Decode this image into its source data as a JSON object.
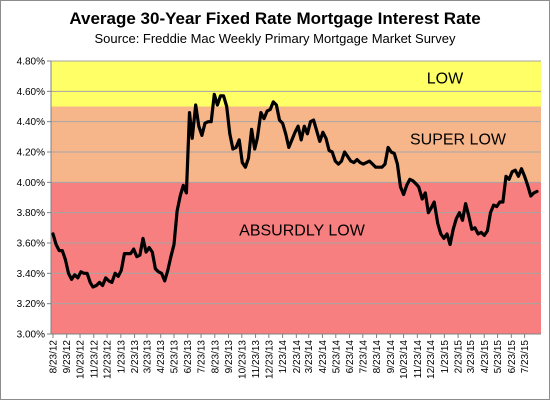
{
  "chart_data": {
    "type": "line",
    "title": "Average 30-Year Fixed Rate Mortgage Interest Rate",
    "subtitle": "Source: Freddie Mac Weekly Primary Mortgage Market Survey",
    "y_unit": "%",
    "ylim": [
      3.0,
      4.8
    ],
    "y_ticks": [
      "3.00%",
      "3.20%",
      "3.40%",
      "3.60%",
      "3.80%",
      "4.00%",
      "4.20%",
      "4.40%",
      "4.60%",
      "4.80%"
    ],
    "x_ticks": [
      "8/23/12",
      "9/23/12",
      "10/23/12",
      "11/23/12",
      "12/23/12",
      "1/23/13",
      "2/23/13",
      "3/23/13",
      "4/23/13",
      "5/23/13",
      "6/23/13",
      "7/23/13",
      "8/23/13",
      "9/23/13",
      "10/23/13",
      "11/23/13",
      "12/23/13",
      "1/23/14",
      "2/23/14",
      "3/23/14",
      "4/23/14",
      "5/23/14",
      "6/23/14",
      "7/23/14",
      "8/23/14",
      "9/23/14",
      "10/23/14",
      "11/23/14",
      "12/23/14",
      "1/23/15",
      "2/23/15",
      "3/23/15",
      "4/23/15",
      "5/23/15",
      "6/23/15",
      "7/23/15"
    ],
    "grid": true,
    "bands": [
      {
        "label": "LOW",
        "from": 4.5,
        "to": 4.8,
        "color": "#ffff66"
      },
      {
        "label": "SUPER LOW",
        "from": 4.0,
        "to": 4.5,
        "color": "#f7b58a"
      },
      {
        "label": "ABSURDLY LOW",
        "from": 3.0,
        "to": 4.0,
        "color": "#f77f7f"
      }
    ],
    "line_color": "#000000",
    "series": [
      {
        "x": [
          "2012-08-23",
          "2012-08-30",
          "2012-09-06",
          "2012-09-13",
          "2012-09-20",
          "2012-09-27",
          "2012-10-04",
          "2012-10-11",
          "2012-10-18",
          "2012-10-25",
          "2012-11-01",
          "2012-11-08",
          "2012-11-15",
          "2012-11-21",
          "2012-11-29",
          "2012-12-06",
          "2012-12-13",
          "2012-12-20",
          "2012-12-27",
          "2013-01-03",
          "2013-01-10",
          "2013-01-17",
          "2013-01-24",
          "2013-01-31",
          "2013-02-07",
          "2013-02-14",
          "2013-02-21",
          "2013-02-28",
          "2013-03-07",
          "2013-03-14",
          "2013-03-21",
          "2013-03-28",
          "2013-04-04",
          "2013-04-11",
          "2013-04-18",
          "2013-04-25",
          "2013-05-02",
          "2013-05-09",
          "2013-05-16",
          "2013-05-23",
          "2013-05-30",
          "2013-06-06",
          "2013-06-13",
          "2013-06-20",
          "2013-06-27",
          "2013-07-03",
          "2013-07-11",
          "2013-07-18",
          "2013-07-25",
          "2013-08-01",
          "2013-08-08",
          "2013-08-15",
          "2013-08-22",
          "2013-08-29",
          "2013-09-05",
          "2013-09-12",
          "2013-09-19",
          "2013-09-26",
          "2013-10-03",
          "2013-10-10",
          "2013-10-17",
          "2013-10-24",
          "2013-10-31",
          "2013-11-07",
          "2013-11-14",
          "2013-11-21",
          "2013-11-27",
          "2013-12-05",
          "2013-12-12",
          "2013-12-19",
          "2013-12-26",
          "2014-01-02",
          "2014-01-09",
          "2014-01-16",
          "2014-01-23",
          "2014-01-30",
          "2014-02-06",
          "2014-02-13",
          "2014-02-20",
          "2014-02-27",
          "2014-03-06",
          "2014-03-13",
          "2014-03-20",
          "2014-03-27",
          "2014-04-03",
          "2014-04-10",
          "2014-04-17",
          "2014-04-24",
          "2014-05-01",
          "2014-05-08",
          "2014-05-15",
          "2014-05-22",
          "2014-05-29",
          "2014-06-05",
          "2014-06-12",
          "2014-06-19",
          "2014-06-26",
          "2014-07-03",
          "2014-07-10",
          "2014-07-17",
          "2014-07-24",
          "2014-07-31",
          "2014-08-07",
          "2014-08-14",
          "2014-08-21",
          "2014-08-28",
          "2014-09-04",
          "2014-09-11",
          "2014-09-18",
          "2014-09-25",
          "2014-10-02",
          "2014-10-09",
          "2014-10-16",
          "2014-10-23",
          "2014-10-30",
          "2014-11-06",
          "2014-11-13",
          "2014-11-20",
          "2014-11-26",
          "2014-12-04",
          "2014-12-11",
          "2014-12-18",
          "2014-12-24",
          "2014-12-31",
          "2015-01-08",
          "2015-01-15",
          "2015-01-22",
          "2015-01-29",
          "2015-02-05",
          "2015-02-12",
          "2015-02-19",
          "2015-02-26",
          "2015-03-05",
          "2015-03-12",
          "2015-03-19",
          "2015-03-26",
          "2015-04-02",
          "2015-04-09",
          "2015-04-16",
          "2015-04-23",
          "2015-04-30",
          "2015-05-07",
          "2015-05-14",
          "2015-05-21",
          "2015-05-28",
          "2015-06-04",
          "2015-06-11",
          "2015-06-18",
          "2015-06-25",
          "2015-07-02",
          "2015-07-09",
          "2015-07-16",
          "2015-07-23",
          "2015-07-30",
          "2015-08-06",
          "2015-08-13",
          "2015-08-20"
        ],
        "y": [
          3.66,
          3.59,
          3.55,
          3.55,
          3.49,
          3.4,
          3.36,
          3.39,
          3.37,
          3.41,
          3.4,
          3.4,
          3.34,
          3.31,
          3.32,
          3.34,
          3.32,
          3.37,
          3.35,
          3.34,
          3.4,
          3.38,
          3.42,
          3.53,
          3.53,
          3.53,
          3.56,
          3.51,
          3.52,
          3.63,
          3.54,
          3.57,
          3.54,
          3.43,
          3.41,
          3.4,
          3.35,
          3.42,
          3.51,
          3.59,
          3.81,
          3.91,
          3.98,
          3.93,
          4.46,
          4.29,
          4.51,
          4.37,
          4.31,
          4.39,
          4.4,
          4.4,
          4.58,
          4.51,
          4.57,
          4.57,
          4.5,
          4.32,
          4.22,
          4.23,
          4.28,
          4.13,
          4.1,
          4.16,
          4.35,
          4.22,
          4.29,
          4.46,
          4.42,
          4.47,
          4.48,
          4.53,
          4.51,
          4.41,
          4.39,
          4.32,
          4.23,
          4.28,
          4.33,
          4.37,
          4.28,
          4.37,
          4.32,
          4.4,
          4.41,
          4.34,
          4.27,
          4.33,
          4.29,
          4.21,
          4.2,
          4.14,
          4.12,
          4.14,
          4.2,
          4.17,
          4.14,
          4.13,
          4.15,
          4.13,
          4.12,
          4.13,
          4.14,
          4.12,
          4.1,
          4.1,
          4.1,
          4.12,
          4.23,
          4.2,
          4.19,
          4.12,
          3.97,
          3.92,
          3.98,
          4.02,
          4.01,
          3.99,
          3.97,
          3.89,
          3.93,
          3.8,
          3.83,
          3.87,
          3.73,
          3.66,
          3.63,
          3.66,
          3.59,
          3.69,
          3.76,
          3.8,
          3.75,
          3.86,
          3.78,
          3.69,
          3.7,
          3.66,
          3.67,
          3.65,
          3.68,
          3.8,
          3.85,
          3.84,
          3.87,
          3.87,
          4.04,
          4.02,
          4.07,
          4.08,
          4.04,
          4.09,
          4.04,
          3.98,
          3.91,
          3.93,
          3.94
        ]
      }
    ]
  }
}
